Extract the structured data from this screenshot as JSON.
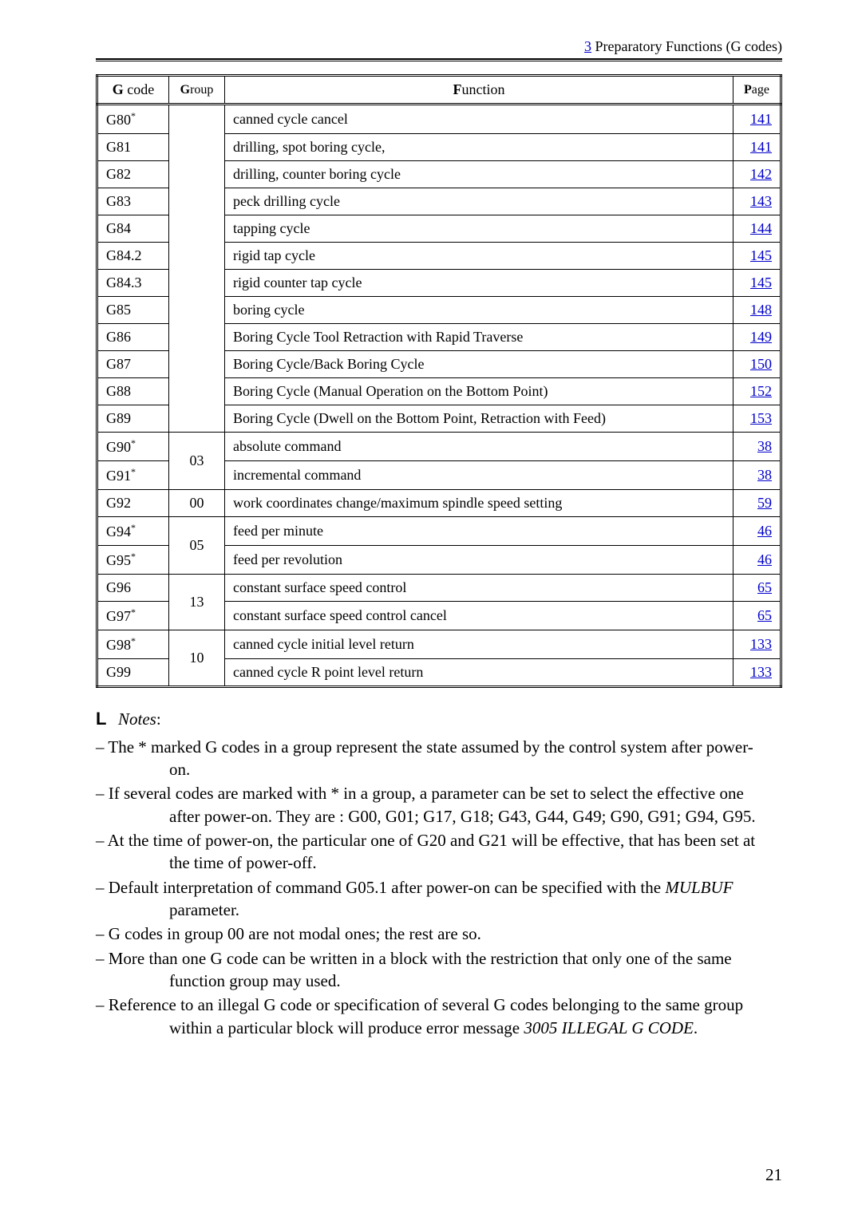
{
  "header": {
    "link_text": "3",
    "rest_text": " Preparatory Functions (G codes)"
  },
  "table": {
    "headers": {
      "code_b": "G",
      "code_rest": " code",
      "group_b": "G",
      "group_rest": "roup",
      "func_b": "F",
      "func_rest": "unction",
      "page_b": "P",
      "page_rest": "age"
    },
    "rows": [
      {
        "code": "G80",
        "sup": "*",
        "func": "canned cycle cancel",
        "page": "141"
      },
      {
        "code": "G81",
        "sup": "",
        "func": "drilling, spot boring cycle,",
        "page": "141"
      },
      {
        "code": "G82",
        "sup": "",
        "func": "drilling, counter boring cycle",
        "page": "142"
      },
      {
        "code": "G83",
        "sup": "",
        "func": "peck drilling cycle",
        "page": "143"
      },
      {
        "code": "G84",
        "sup": "",
        "func": "tapping cycle",
        "page": "144"
      },
      {
        "code": "G84.2",
        "sup": "",
        "func": "rigid tap cycle",
        "page": "145"
      },
      {
        "code": "G84.3",
        "sup": "",
        "func": "rigid counter tap cycle",
        "page": "145"
      },
      {
        "code": "G85",
        "sup": "",
        "func": "boring cycle",
        "page": "148"
      },
      {
        "code": "G86",
        "sup": "",
        "func": "Boring Cycle Tool Retraction with Rapid Traverse",
        "page": "149"
      },
      {
        "code": "G87",
        "sup": "",
        "func": "Boring Cycle/Back Boring Cycle",
        "page": "150"
      },
      {
        "code": "G88",
        "sup": "",
        "func": "Boring Cycle (Manual Operation on the Bottom Point)",
        "page": "152"
      },
      {
        "code": "G89",
        "sup": "",
        "func": "Boring Cycle (Dwell on the Bottom Point, Retraction with Feed)",
        "page": "153"
      },
      {
        "code": "G90",
        "sup": "*",
        "func": "absolute command",
        "page": "38",
        "group": "03",
        "group_span": 2
      },
      {
        "code": "G91",
        "sup": "*",
        "func": "incremental command",
        "page": "38"
      },
      {
        "code": "G92",
        "sup": "",
        "func": "work coordinates change/maximum spindle speed setting",
        "page": "59",
        "group": "00",
        "group_span": 1
      },
      {
        "code": "G94",
        "sup": "*",
        "func": "feed per minute",
        "page": "46",
        "group": "05",
        "group_span": 2
      },
      {
        "code": "G95",
        "sup": "*",
        "func": "feed per revolution",
        "page": "46"
      },
      {
        "code": "G96",
        "sup": "",
        "func": "constant surface speed control",
        "page": "65",
        "group": "13",
        "group_span": 2
      },
      {
        "code": "G97",
        "sup": "*",
        "func": "constant surface speed control cancel",
        "page": "65"
      },
      {
        "code": "G98",
        "sup": "*",
        "func": "canned cycle initial level return",
        "page": "133",
        "group": "10",
        "group_span": 2
      },
      {
        "code": "G99",
        "sup": "",
        "func": "canned cycle R point level return",
        "page": "133"
      }
    ],
    "first_group_span": 12
  },
  "notes": {
    "title": "Notes",
    "items": [
      {
        "first": "– The * marked G codes in a group represent the state assumed by the control system after power-",
        "cont": "on."
      },
      {
        "first": "– If several codes are marked with * in a group, a parameter can be set to select the effective one",
        "cont": "after power-on. They are : G00, G01; G17, G18; G43, G44, G49; G90, G91; G94, G95."
      },
      {
        "first": "– At the time of power-on, the particular one of G20 and G21 will be effective, that has been set at",
        "cont": "the time of power-off."
      },
      {
        "first": "– Default interpretation of command G05.1 after power-on can be specified with the ",
        "ital": "MULBUF",
        "cont": "parameter."
      },
      {
        "first": "– G codes in group 00 are not modal ones; the rest are so.",
        "cont": ""
      },
      {
        "first": "– More than one G code can be written in a block with the restriction that only one of the same",
        "cont": "function group may used."
      },
      {
        "first": "– Reference to an illegal G code or specification of several G codes belonging to the same group",
        "cont": "within a particular block will produce error message ",
        "tail_ital": "3005 ILLEGAL G CODE",
        "tail_after": "."
      }
    ]
  },
  "page_number": "21"
}
